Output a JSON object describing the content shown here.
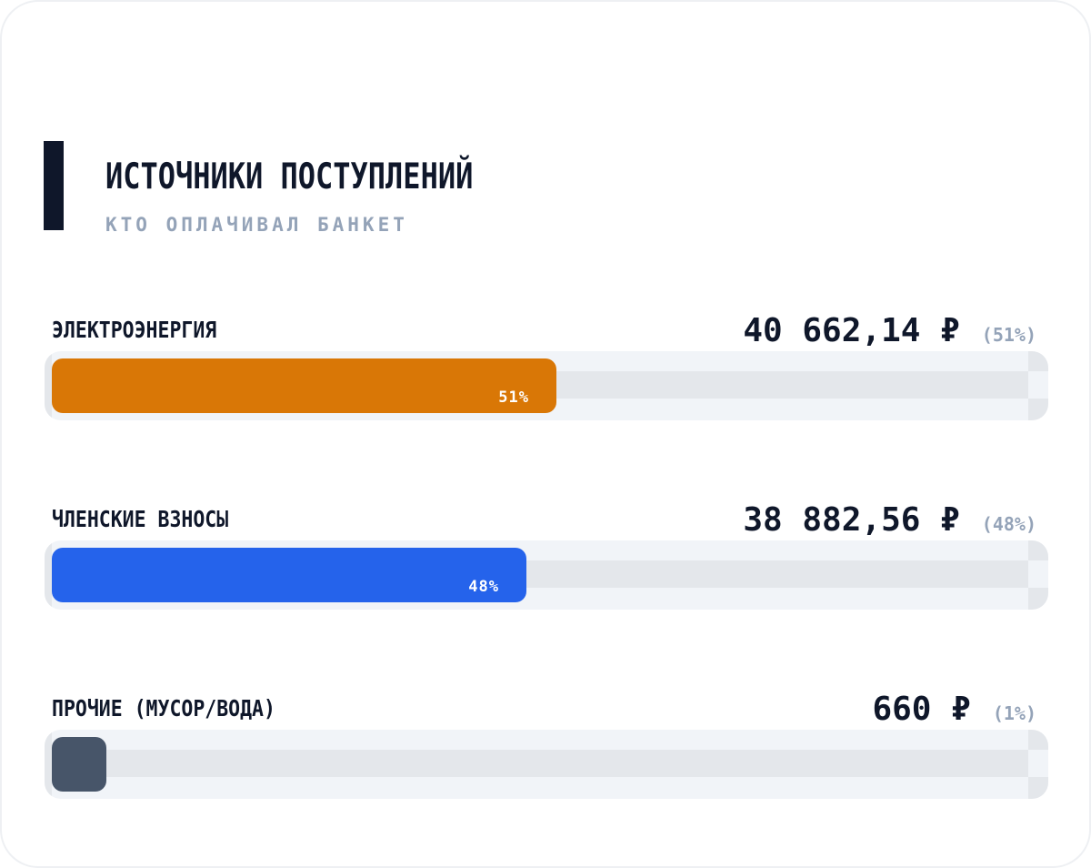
{
  "header": {
    "title": "ИСТОЧНИКИ ПОСТУПЛЕНИЙ",
    "subtitle": "КТО ОПЛАЧИВАЛ БАНКЕТ"
  },
  "chart_data": {
    "type": "bar",
    "orientation": "horizontal",
    "title": "ИСТОЧНИКИ ПОСТУПЛЕНИЙ",
    "subtitle": "КТО ОПЛАЧИВАЛ БАНКЕТ",
    "categories": [
      "ЭЛЕКТРОЭНЕРГИЯ",
      "ЧЛЕНСКИЕ ВЗНОСЫ",
      "ПРОЧИЕ (МУСОР/ВОДА)"
    ],
    "values": [
      40662.14,
      38882.56,
      660
    ],
    "percents": [
      51,
      48,
      1
    ],
    "xlim": [
      0,
      100
    ],
    "items": [
      {
        "label": "ЭЛЕКТРОЭНЕРГИЯ",
        "amount": "40 662,14 ₽",
        "pct": "(51%)",
        "bar_label": "51%",
        "percent": 51,
        "color": "#d97706"
      },
      {
        "label": "ЧЛЕНСКИЕ ВЗНОСЫ",
        "amount": "38 882,56 ₽",
        "pct": "(48%)",
        "bar_label": "48%",
        "percent": 48,
        "color": "#2563eb"
      },
      {
        "label": "ПРОЧИЕ (МУСОР/ВОДА)",
        "amount": "660 ₽",
        "pct": "(1%)",
        "bar_label": "",
        "percent": 1,
        "color": "#475569"
      }
    ]
  }
}
